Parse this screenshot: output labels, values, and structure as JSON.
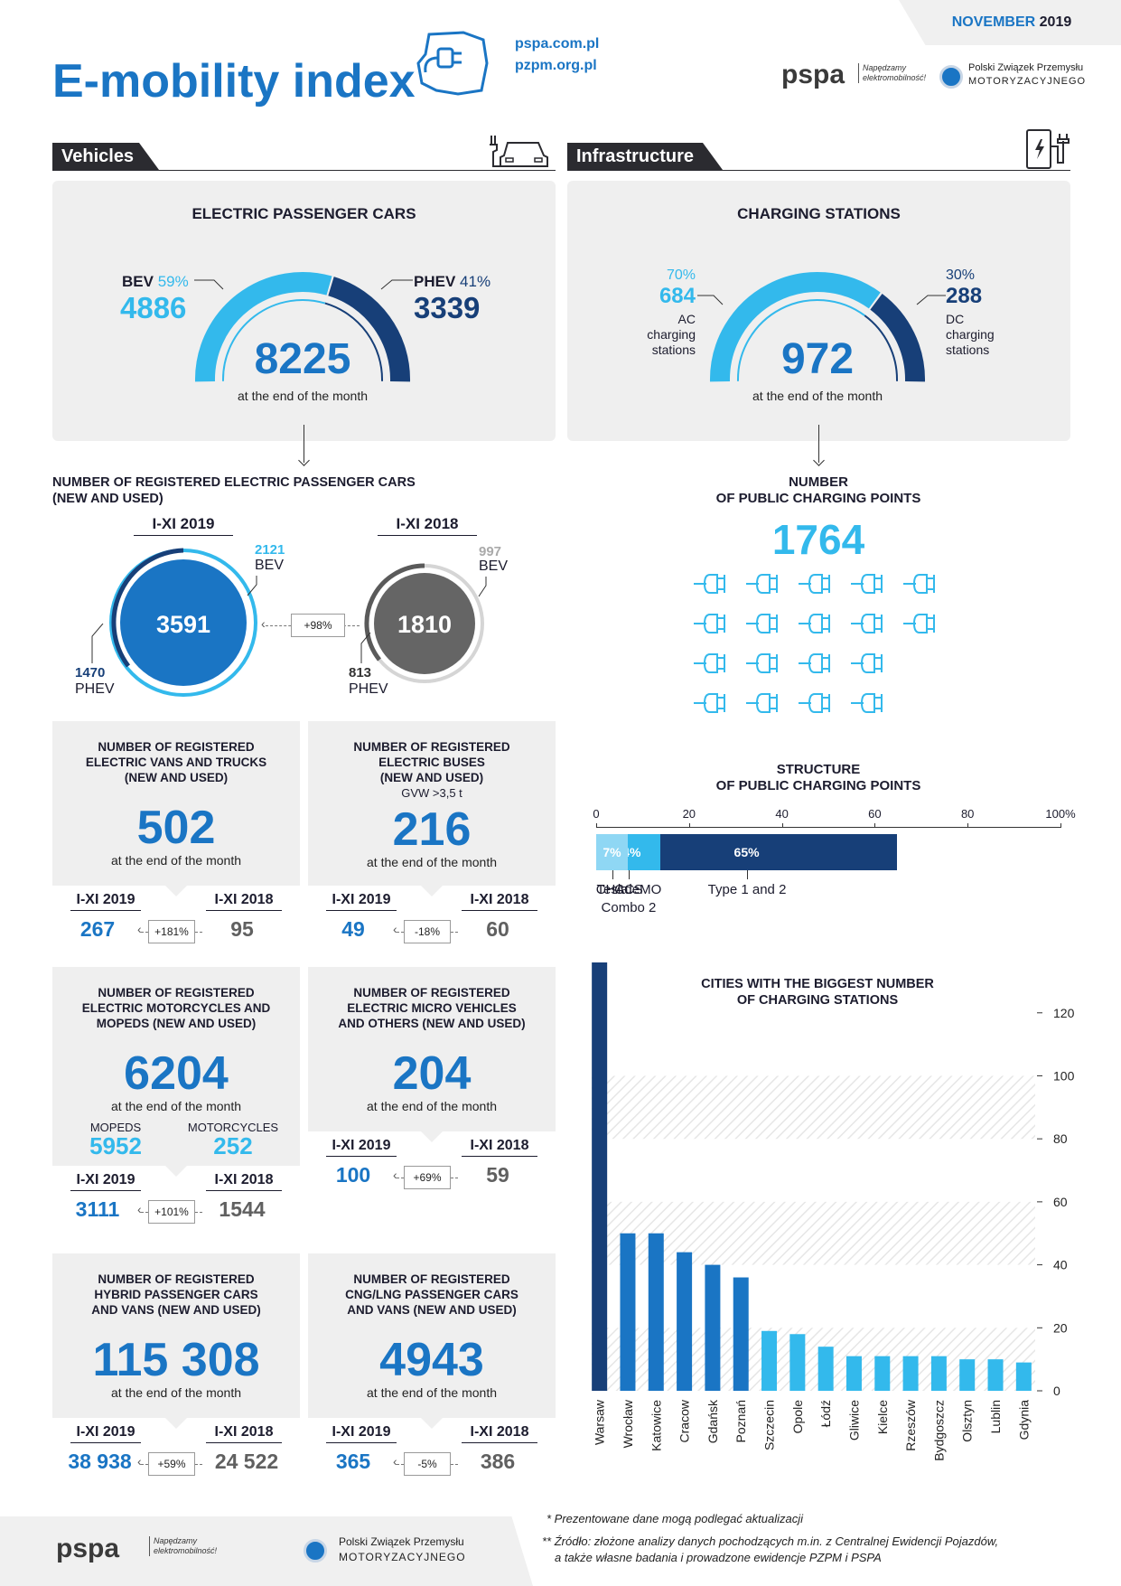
{
  "header": {
    "title": "E-mobility index",
    "date_prefix": "NOVEMBER",
    "date_year": "2019",
    "url1": "pspa.com.pl",
    "url2": "pzpm.org.pl",
    "pspa_logo": "pspa",
    "pspa_tagline": "Napędzamy elektromobilność!",
    "pzpm_name_line1": "Polski Związek Przemysłu",
    "pzpm_name_line2": "MOTORYZACYJNEGO"
  },
  "sections": {
    "vehicles": "Vehicles",
    "infrastructure": "Infrastructure"
  },
  "cars": {
    "title": "ELECTRIC PASSENGER CARS",
    "bev_label": "BEV",
    "bev_pct": "59%",
    "bev_value": "4886",
    "phev_label": "PHEV",
    "phev_pct": "41%",
    "phev_value": "3339",
    "total": "8225",
    "total_sub": "at the end of the month",
    "bev_share": 0.59
  },
  "stations": {
    "title": "CHARGING STATIONS",
    "ac_pct": "70%",
    "ac_value": "684",
    "ac_label": "AC charging stations",
    "dc_pct": "30%",
    "dc_value": "288",
    "dc_label": "DC charging stations",
    "total": "972",
    "total_sub": "at the end of the month",
    "ac_share": 0.7
  },
  "registered_cars": {
    "title_line1": "NUMBER OF REGISTERED ELECTRIC PASSENGER CARS",
    "title_line2": "(NEW AND USED)",
    "y2019": {
      "label": "I-XI 2019",
      "total": "3591",
      "bev": "2121",
      "bev_label": "BEV",
      "phev": "1470",
      "phev_label": "PHEV"
    },
    "y2018": {
      "label": "I-XI 2018",
      "total": "1810",
      "bev": "997",
      "bev_label": "BEV",
      "phev": "813",
      "phev_label": "PHEV"
    },
    "change": "+98%"
  },
  "public_points": {
    "title_line1": "NUMBER",
    "title_line2": "OF PUBLIC CHARGING POINTS",
    "value": "1764",
    "icon_rows": [
      5,
      5,
      4,
      4
    ]
  },
  "structure": {
    "title_line1": "STRUCTURE",
    "title_line2": "OF PUBLIC CHARGING POINTS",
    "axis_ticks": [
      "0",
      "20",
      "40",
      "60",
      "80",
      "100%"
    ],
    "segments": [
      {
        "label": "Type 1 and 2",
        "pct_label": "65%",
        "value": 65,
        "color": "#173f78"
      },
      {
        "label": "CHAdeMO",
        "pct_label": "14%",
        "value": 14,
        "color": "#1a75c4"
      },
      {
        "label": "CCS Combo 2",
        "pct_label": "14%",
        "value": 14,
        "color": "#33b9ec"
      },
      {
        "label": "Tesla",
        "pct_label": "7%",
        "value": 7,
        "color": "#8fd7f4"
      }
    ]
  },
  "panels": [
    {
      "title": [
        "NUMBER OF REGISTERED",
        "ELECTRIC VANS AND TRUCKS",
        "(NEW AND USED)"
      ],
      "extra": "",
      "value": "502",
      "sub": "at the end of the month",
      "y2019_label": "I-XI 2019",
      "y2019": "267",
      "y2018_label": "I-XI 2018",
      "y2018": "95",
      "change": "+181%"
    },
    {
      "title": [
        "NUMBER OF REGISTERED",
        "ELECTRIC BUSES",
        "(NEW AND USED)"
      ],
      "extra": "GVW >3,5 t",
      "value": "216",
      "sub": "at the end of the month",
      "y2019_label": "I-XI 2019",
      "y2019": "49",
      "y2018_label": "I-XI 2018",
      "y2018": "60",
      "change": "-18%"
    },
    {
      "title": [
        "NUMBER OF REGISTERED",
        "ELECTRIC MOTORCYCLES AND",
        "MOPEDS (NEW AND USED)"
      ],
      "extra": "",
      "value": "6204",
      "sub": "at the end of the month",
      "mopeds_label": "MOPEDS",
      "mopeds": "5952",
      "moto_label": "MOTORCYCLES",
      "moto": "252",
      "y2019_label": "I-XI 2019",
      "y2019": "3111",
      "y2018_label": "I-XI 2018",
      "y2018": "1544",
      "change": "+101%"
    },
    {
      "title": [
        "NUMBER OF REGISTERED",
        "ELECTRIC MICRO VEHICLES",
        "AND OTHERS (NEW AND USED)"
      ],
      "extra": "",
      "value": "204",
      "sub": "at the end of the month",
      "y2019_label": "I-XI 2019",
      "y2019": "100",
      "y2018_label": "I-XI 2018",
      "y2018": "59",
      "change": "+69%"
    },
    {
      "title": [
        "NUMBER OF REGISTERED",
        "HYBRID PASSENGER CARS",
        "AND VANS (NEW AND USED)"
      ],
      "extra": "",
      "value": "115 308",
      "sub": "at the end of the month",
      "y2019_label": "I-XI 2019",
      "y2019": "38 938",
      "y2018_label": "I-XI 2018",
      "y2018": "24 522",
      "change": "+59%"
    },
    {
      "title": [
        "NUMBER OF REGISTERED",
        "CNG/LNG PASSENGER CARS",
        "AND VANS (NEW AND USED)"
      ],
      "extra": "",
      "value": "4943",
      "sub": "at the end of the month",
      "y2019_label": "I-XI 2019",
      "y2019": "365",
      "y2018_label": "I-XI 2018",
      "y2018": "386",
      "change": "-5%"
    }
  ],
  "chart_data": {
    "type": "bar",
    "title": "CITIES WITH THE BIGGEST NUMBER OF CHARGING STATIONS",
    "title_line1": "CITIES WITH THE BIGGEST NUMBER",
    "title_line2": "OF CHARGING STATIONS",
    "categories": [
      "Warsaw",
      "Wrocław",
      "Katowice",
      "Cracow",
      "Gdańsk",
      "Poznań",
      "Szczecin",
      "Opole",
      "Łódź",
      "Gliwice",
      "Kielce",
      "Rzeszów",
      "Bydgoszcz",
      "Olsztyn",
      "Lublin",
      "Gdynia"
    ],
    "values": [
      136,
      50,
      50,
      44,
      40,
      36,
      19,
      18,
      14,
      11,
      11,
      11,
      11,
      10,
      10,
      9
    ],
    "ylim": [
      0,
      136
    ],
    "yticks": [
      0,
      20,
      40,
      60,
      80,
      100,
      120
    ],
    "colors": {
      "top": "#173f78",
      "mid": "#1a75c4",
      "low": "#33b9ec"
    }
  },
  "footer": {
    "note1": "* Prezentowane dane mogą podlegać aktualizacji",
    "note2_line1": "** Źródło: złożone analizy danych pochodzących m.in. z Centralnej Ewidencji Pojazdów,",
    "note2_line2": "a także własne badania i prowadzone ewidencje PZPM i PSPA"
  }
}
